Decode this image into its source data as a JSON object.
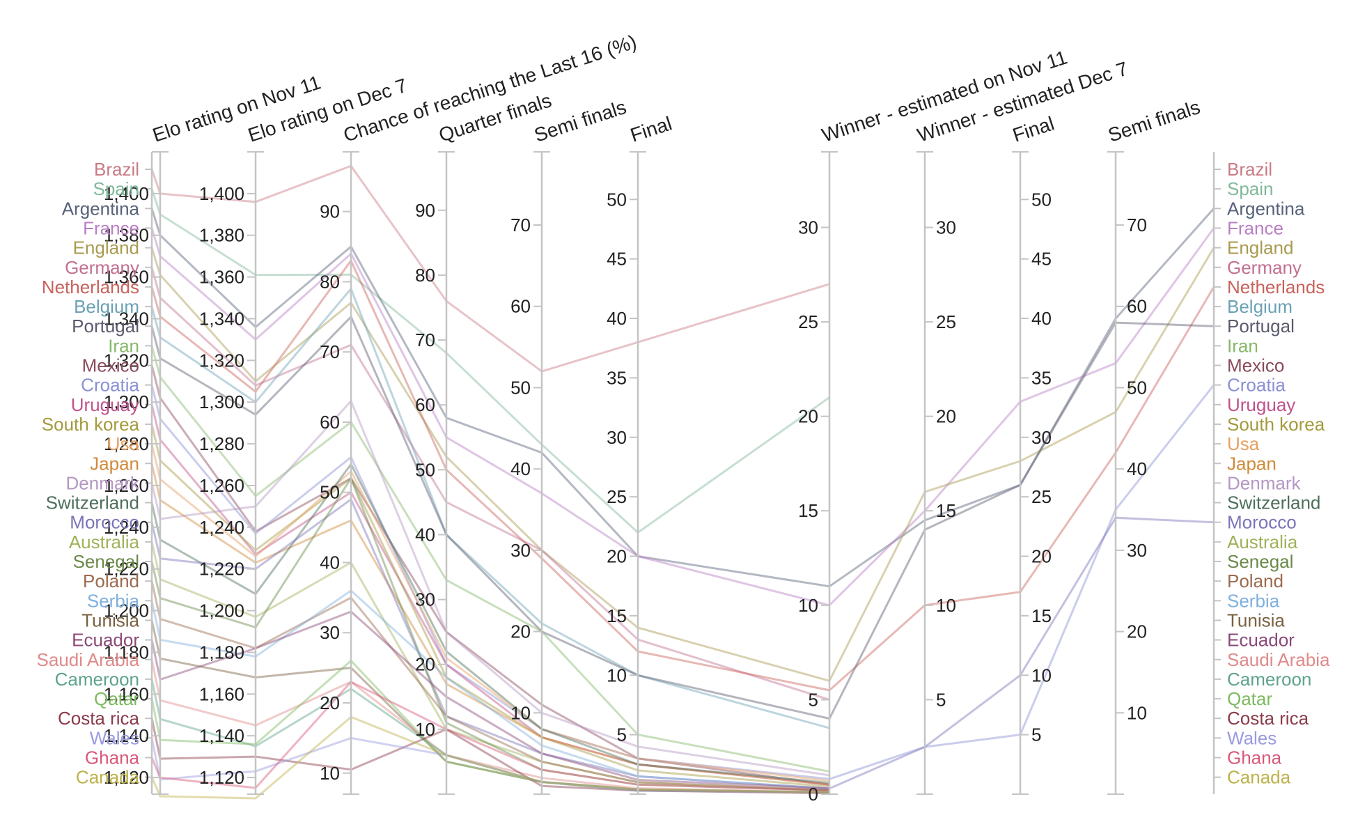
{
  "chart_data": {
    "type": "parallel-coordinates",
    "axes": [
      {
        "title": "Elo rating on Nov 11",
        "min": 1112,
        "max": 1420,
        "ticks": [
          "1,400",
          "1,380",
          "1,360",
          "1,340",
          "1,320",
          "1,300",
          "1,280",
          "1,260",
          "1,240",
          "1,220",
          "1,200",
          "1,180",
          "1,160",
          "1,140",
          "1,120"
        ],
        "tickValues": [
          1400,
          1380,
          1360,
          1340,
          1320,
          1300,
          1280,
          1260,
          1240,
          1220,
          1200,
          1180,
          1160,
          1140,
          1120
        ]
      },
      {
        "title": "Elo rating on Dec 7",
        "min": 1112,
        "max": 1420,
        "ticks": [
          "1,400",
          "1,380",
          "1,360",
          "1,340",
          "1,320",
          "1,300",
          "1,280",
          "1,260",
          "1,240",
          "1,220",
          "1,200",
          "1,180",
          "1,160",
          "1,140",
          "1,120"
        ],
        "tickValues": [
          1400,
          1380,
          1360,
          1340,
          1320,
          1300,
          1280,
          1260,
          1240,
          1220,
          1200,
          1180,
          1160,
          1140,
          1120
        ]
      },
      {
        "title": "Chance of reaching the Last 16 (%)",
        "min": 7,
        "max": 98.5,
        "ticks": [
          "90",
          "80",
          "70",
          "60",
          "50",
          "40",
          "30",
          "20",
          "10"
        ],
        "tickValues": [
          90,
          80,
          70,
          60,
          50,
          40,
          30,
          20,
          10
        ]
      },
      {
        "title": "Quarter finals",
        "min": 0,
        "max": 99,
        "ticks": [
          "90",
          "80",
          "70",
          "60",
          "50",
          "40",
          "30",
          "20",
          "10"
        ],
        "tickValues": [
          90,
          80,
          70,
          60,
          50,
          40,
          30,
          20,
          10
        ]
      },
      {
        "title": "Semi finals",
        "min": 0,
        "max": 79,
        "ticks": [
          "70",
          "60",
          "50",
          "40",
          "30",
          "20",
          "10"
        ],
        "tickValues": [
          70,
          60,
          50,
          40,
          30,
          20,
          10
        ]
      },
      {
        "title": "Final",
        "min": 0,
        "max": 54,
        "ticks": [
          "50",
          "45",
          "40",
          "35",
          "30",
          "25",
          "20",
          "15",
          "10",
          "5"
        ],
        "tickValues": [
          50,
          45,
          40,
          35,
          30,
          25,
          20,
          15,
          10,
          5
        ]
      },
      {
        "title": "Winner - estimated on Nov 11",
        "min": 0,
        "max": 34,
        "ticks": [
          "30",
          "25",
          "20",
          "15",
          "10",
          "5",
          "0"
        ],
        "tickValues": [
          30,
          25,
          20,
          15,
          10,
          5,
          0
        ]
      },
      {
        "title": "Winner - estimated Dec 7",
        "min": 0,
        "max": 34,
        "ticks": [
          "30",
          "25",
          "20",
          "15",
          "10",
          "5"
        ],
        "tickValues": [
          30,
          25,
          20,
          15,
          10,
          5
        ]
      },
      {
        "title": "Final",
        "min": 0,
        "max": 54,
        "ticks": [
          "50",
          "45",
          "40",
          "35",
          "30",
          "25",
          "20",
          "15",
          "10",
          "5"
        ],
        "tickValues": [
          50,
          45,
          40,
          35,
          30,
          25,
          20,
          15,
          10,
          5
        ]
      },
      {
        "title": "Semi finals",
        "min": 0,
        "max": 79,
        "ticks": [
          "70",
          "60",
          "50",
          "40",
          "30",
          "20",
          "10"
        ],
        "tickValues": [
          70,
          60,
          50,
          40,
          30,
          20,
          10
        ]
      }
    ],
    "series": [
      {
        "name": "Brazil",
        "color": "#c97b84",
        "values": [
          1400,
          1396,
          96.5,
          76,
          52,
          38,
          27,
          null,
          null,
          null
        ]
      },
      {
        "name": "Spain",
        "color": "#7fb99a",
        "values": [
          1390,
          1361,
          81,
          68,
          43,
          22,
          21,
          null,
          null,
          null
        ]
      },
      {
        "name": "Argentina",
        "color": "#56627a",
        "values": [
          1380,
          1336,
          85,
          58,
          42,
          20,
          11,
          14.5,
          26,
          58.5
        ]
      },
      {
        "name": "France",
        "color": "#b97fc5",
        "values": [
          1370,
          1330,
          84,
          55,
          37,
          20,
          10,
          15,
          33,
          53
        ]
      },
      {
        "name": "England",
        "color": "#a89a4f",
        "values": [
          1361,
          1310,
          77,
          52,
          30,
          14,
          6,
          16,
          28,
          47
        ]
      },
      {
        "name": "Germany",
        "color": "#c27092",
        "values": [
          1350,
          1308,
          71,
          45,
          30,
          13,
          5,
          null,
          null,
          null
        ]
      },
      {
        "name": "Netherlands",
        "color": "#c9625b",
        "values": [
          1341,
          1305,
          83,
          50,
          29,
          12,
          5.5,
          10,
          17,
          42
        ]
      },
      {
        "name": "Belgium",
        "color": "#6aa1b5",
        "values": [
          1331,
          1300,
          79,
          40,
          21,
          10,
          3.5,
          null,
          null,
          null
        ]
      },
      {
        "name": "Portugal",
        "color": "#5b5b6e",
        "values": [
          1321,
          1294,
          75,
          40,
          20,
          10,
          4,
          14,
          26,
          58
        ]
      },
      {
        "name": "Iran",
        "color": "#86b86a",
        "values": [
          1312,
          1255,
          60,
          33,
          20,
          5,
          1.2,
          null,
          null,
          null
        ]
      },
      {
        "name": "Mexico",
        "color": "#8a4a5a",
        "values": [
          1302,
          1238,
          52,
          25,
          11,
          3,
          0.5,
          null,
          null,
          null
        ]
      },
      {
        "name": "Croatia",
        "color": "#8a90d4",
        "values": [
          1292,
          1237,
          55,
          20,
          8,
          3,
          0.8,
          2.5,
          5,
          35
        ]
      },
      {
        "name": "Uruguay",
        "color": "#c0528a",
        "values": [
          1282,
          1227,
          50,
          20,
          7,
          2.5,
          0.5,
          null,
          null,
          null
        ]
      },
      {
        "name": "South korea",
        "color": "#a39a3d",
        "values": [
          1272,
          1229,
          52,
          18,
          7,
          2,
          0.4,
          null,
          null,
          null
        ]
      },
      {
        "name": "Usa",
        "color": "#e6a062",
        "values": [
          1263,
          1226,
          53,
          21,
          8,
          3,
          0.7,
          null,
          null,
          null
        ]
      },
      {
        "name": "Japan",
        "color": "#d08a3a",
        "values": [
          1253,
          1223,
          46,
          17,
          7,
          2.5,
          0.5,
          null,
          null,
          null
        ]
      },
      {
        "name": "Denmark",
        "color": "#b497c3",
        "values": [
          1244,
          1250,
          63,
          25,
          10,
          4,
          1,
          null,
          null,
          null
        ]
      },
      {
        "name": "Switzerland",
        "color": "#4d6e5b",
        "values": [
          1234,
          1208,
          54,
          22,
          8,
          2.5,
          0.6,
          null,
          null,
          null
        ]
      },
      {
        "name": "Morocco",
        "color": "#7a74b8",
        "values": [
          1225,
          1220,
          49,
          12,
          5,
          1.5,
          0.3,
          2.5,
          10,
          34
        ]
      },
      {
        "name": "Australia",
        "color": "#9fb25a",
        "values": [
          1215,
          1197,
          40,
          10,
          4,
          1,
          0.2,
          null,
          null,
          null
        ]
      },
      {
        "name": "Senegal",
        "color": "#6b8a4a",
        "values": [
          1206,
          1192,
          52,
          11,
          3,
          0.8,
          0.2,
          null,
          null,
          null
        ]
      },
      {
        "name": "Poland",
        "color": "#9c6a4e",
        "values": [
          1196,
          1182,
          35,
          12,
          4,
          1,
          0.2,
          null,
          null,
          null
        ]
      },
      {
        "name": "Serbia",
        "color": "#7fb0de",
        "values": [
          1186,
          1178,
          36,
          18,
          6,
          1.5,
          0.3,
          null,
          null,
          null
        ]
      },
      {
        "name": "Tunisia",
        "color": "#7a6040",
        "values": [
          1177,
          1168,
          25,
          5,
          1.5,
          0.4,
          0.1,
          null,
          null,
          null
        ]
      },
      {
        "name": "Ecuador",
        "color": "#8a4a78",
        "values": [
          1167,
          1182,
          33,
          15,
          5,
          1.2,
          0.3,
          null,
          null,
          null
        ]
      },
      {
        "name": "Saudi Arabia",
        "color": "#e08a8a",
        "values": [
          1157,
          1145,
          23,
          6,
          2,
          0.5,
          0.1,
          null,
          null,
          null
        ]
      },
      {
        "name": "Cameroon",
        "color": "#5ea38a",
        "values": [
          1148,
          1135,
          22,
          6,
          1.5,
          0.4,
          0.1,
          null,
          null,
          null
        ]
      },
      {
        "name": "Qatar",
        "color": "#7cba5e",
        "values": [
          1138,
          1136,
          26,
          5,
          1.5,
          0.3,
          0.1,
          null,
          null,
          null
        ]
      },
      {
        "name": "Costa rica",
        "color": "#8a3a4a",
        "values": [
          1129,
          1130,
          10.5,
          10,
          1,
          0.3,
          0.05,
          null,
          null,
          null
        ]
      },
      {
        "name": "Wales",
        "color": "#9a9ae0",
        "values": [
          1119,
          1123,
          15,
          6,
          1.5,
          0.3,
          0.1,
          null,
          null,
          null
        ]
      },
      {
        "name": "Ghana",
        "color": "#d9587a",
        "values": [
          1120,
          1115,
          23,
          10,
          3,
          0.8,
          0.2,
          null,
          null,
          null
        ]
      },
      {
        "name": "Canada",
        "color": "#bcb24a",
        "values": [
          1111,
          1110,
          18,
          6,
          1.5,
          0.4,
          0.1,
          null,
          null,
          null
        ]
      }
    ]
  }
}
